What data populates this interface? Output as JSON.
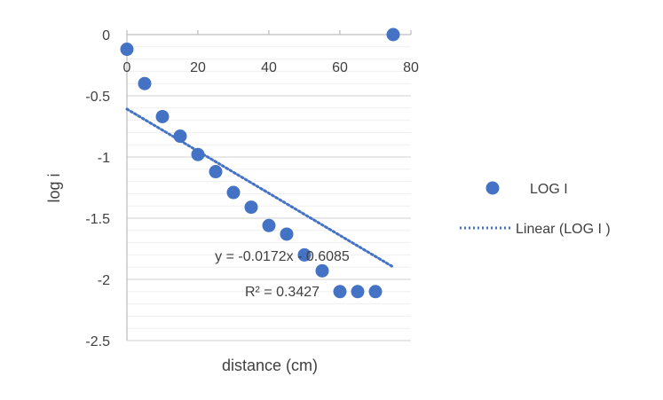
{
  "chart_data": {
    "type": "scatter",
    "title": "",
    "xlabel": "distance (cm)",
    "ylabel": "log i",
    "xlim": [
      0,
      80
    ],
    "ylim": [
      -2.5,
      0
    ],
    "x_ticks": [
      "0",
      "20",
      "40",
      "60",
      "80"
    ],
    "y_ticks": [
      "0",
      "-0.5",
      "-1",
      "-1.5",
      "-2",
      "-2.5"
    ],
    "grid": true,
    "legend_position": "right",
    "series": [
      {
        "name": "LOG I",
        "type": "scatter",
        "color": "#4472C4",
        "x": [
          0,
          5,
          10,
          15,
          20,
          25,
          30,
          35,
          40,
          45,
          50,
          55,
          60,
          65,
          70,
          75
        ],
        "y": [
          -0.12,
          -0.4,
          -0.67,
          -0.83,
          -0.98,
          -1.12,
          -1.29,
          -1.41,
          -1.56,
          -1.63,
          -1.8,
          -1.93,
          -2.1,
          -2.1,
          -2.1,
          0
        ]
      },
      {
        "name": "Linear (LOG I )",
        "type": "trendline",
        "color": "#4472C4",
        "slope": -0.0172,
        "intercept": -0.6085,
        "x_range": [
          0,
          75
        ]
      }
    ],
    "annotations": [
      {
        "text": "y = -0.0172x - 0.6085"
      },
      {
        "text": "R² = 0.3427"
      }
    ]
  }
}
